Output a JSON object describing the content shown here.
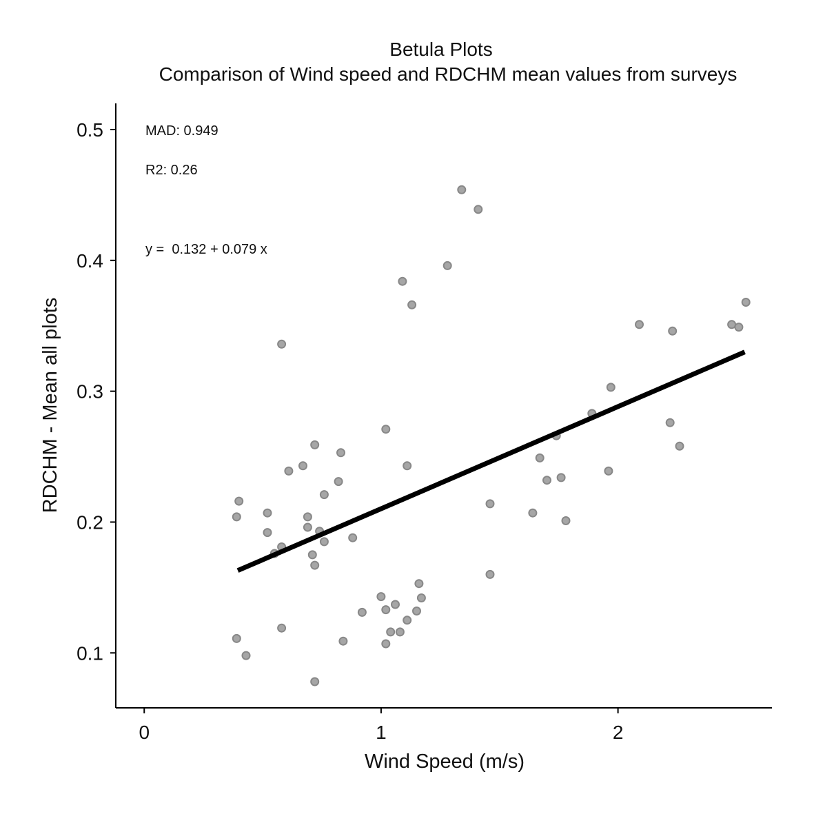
{
  "chart_data": {
    "type": "scatter",
    "title": "Betula Plots",
    "subtitle": "Comparison of Wind speed and RDCHM mean values from surveys",
    "xlabel": "Wind Speed (m/s)",
    "ylabel": "RDCHM - Mean all plots",
    "xlim": [
      -0.12,
      2.65
    ],
    "ylim": [
      0.058,
      0.52
    ],
    "xticks": [
      0,
      1,
      2
    ],
    "xtick_labels": [
      "0",
      "1",
      "2"
    ],
    "yticks": [
      0.1,
      0.2,
      0.3,
      0.4,
      0.5
    ],
    "ytick_labels": [
      "0.1",
      "0.2",
      "0.3",
      "0.4",
      "0.5"
    ],
    "grid": false,
    "annotations": {
      "mad": "MAD: 0.949",
      "r2": "R2: 0.26",
      "equation": "y =  0.132 + 0.079 x"
    },
    "colors": {
      "point_fill": "#a6a6a6",
      "point_stroke": "#888888",
      "fit_line": "#000000"
    },
    "fit_line": {
      "x": [
        0.395,
        2.535
      ],
      "y": [
        0.163,
        0.33
      ]
    },
    "points": [
      {
        "x": 0.39,
        "y": 0.204
      },
      {
        "x": 0.4,
        "y": 0.216
      },
      {
        "x": 0.39,
        "y": 0.111
      },
      {
        "x": 0.43,
        "y": 0.098
      },
      {
        "x": 0.52,
        "y": 0.207
      },
      {
        "x": 0.52,
        "y": 0.192
      },
      {
        "x": 0.55,
        "y": 0.176
      },
      {
        "x": 0.58,
        "y": 0.181
      },
      {
        "x": 0.58,
        "y": 0.336
      },
      {
        "x": 0.58,
        "y": 0.119
      },
      {
        "x": 0.61,
        "y": 0.239
      },
      {
        "x": 0.67,
        "y": 0.243
      },
      {
        "x": 0.69,
        "y": 0.204
      },
      {
        "x": 0.69,
        "y": 0.196
      },
      {
        "x": 0.71,
        "y": 0.175
      },
      {
        "x": 0.72,
        "y": 0.167
      },
      {
        "x": 0.72,
        "y": 0.259
      },
      {
        "x": 0.74,
        "y": 0.193
      },
      {
        "x": 0.76,
        "y": 0.221
      },
      {
        "x": 0.76,
        "y": 0.185
      },
      {
        "x": 0.72,
        "y": 0.078
      },
      {
        "x": 0.82,
        "y": 0.231
      },
      {
        "x": 0.83,
        "y": 0.253
      },
      {
        "x": 0.84,
        "y": 0.109
      },
      {
        "x": 0.88,
        "y": 0.188
      },
      {
        "x": 0.92,
        "y": 0.131
      },
      {
        "x": 1.0,
        "y": 0.143
      },
      {
        "x": 1.02,
        "y": 0.271
      },
      {
        "x": 1.02,
        "y": 0.133
      },
      {
        "x": 1.02,
        "y": 0.107
      },
      {
        "x": 1.04,
        "y": 0.116
      },
      {
        "x": 1.06,
        "y": 0.137
      },
      {
        "x": 1.08,
        "y": 0.116
      },
      {
        "x": 1.09,
        "y": 0.384
      },
      {
        "x": 1.11,
        "y": 0.243
      },
      {
        "x": 1.11,
        "y": 0.125
      },
      {
        "x": 1.13,
        "y": 0.366
      },
      {
        "x": 1.15,
        "y": 0.132
      },
      {
        "x": 1.16,
        "y": 0.153
      },
      {
        "x": 1.17,
        "y": 0.142
      },
      {
        "x": 1.28,
        "y": 0.396
      },
      {
        "x": 1.34,
        "y": 0.454
      },
      {
        "x": 1.41,
        "y": 0.439
      },
      {
        "x": 1.46,
        "y": 0.214
      },
      {
        "x": 1.46,
        "y": 0.16
      },
      {
        "x": 1.64,
        "y": 0.207
      },
      {
        "x": 1.67,
        "y": 0.249
      },
      {
        "x": 1.7,
        "y": 0.232
      },
      {
        "x": 1.74,
        "y": 0.266
      },
      {
        "x": 1.76,
        "y": 0.234
      },
      {
        "x": 1.78,
        "y": 0.201
      },
      {
        "x": 1.89,
        "y": 0.283
      },
      {
        "x": 1.96,
        "y": 0.239
      },
      {
        "x": 1.97,
        "y": 0.303
      },
      {
        "x": 2.09,
        "y": 0.351
      },
      {
        "x": 2.22,
        "y": 0.276
      },
      {
        "x": 2.23,
        "y": 0.346
      },
      {
        "x": 2.26,
        "y": 0.258
      },
      {
        "x": 2.48,
        "y": 0.351
      },
      {
        "x": 2.51,
        "y": 0.349
      },
      {
        "x": 2.54,
        "y": 0.368
      }
    ]
  }
}
